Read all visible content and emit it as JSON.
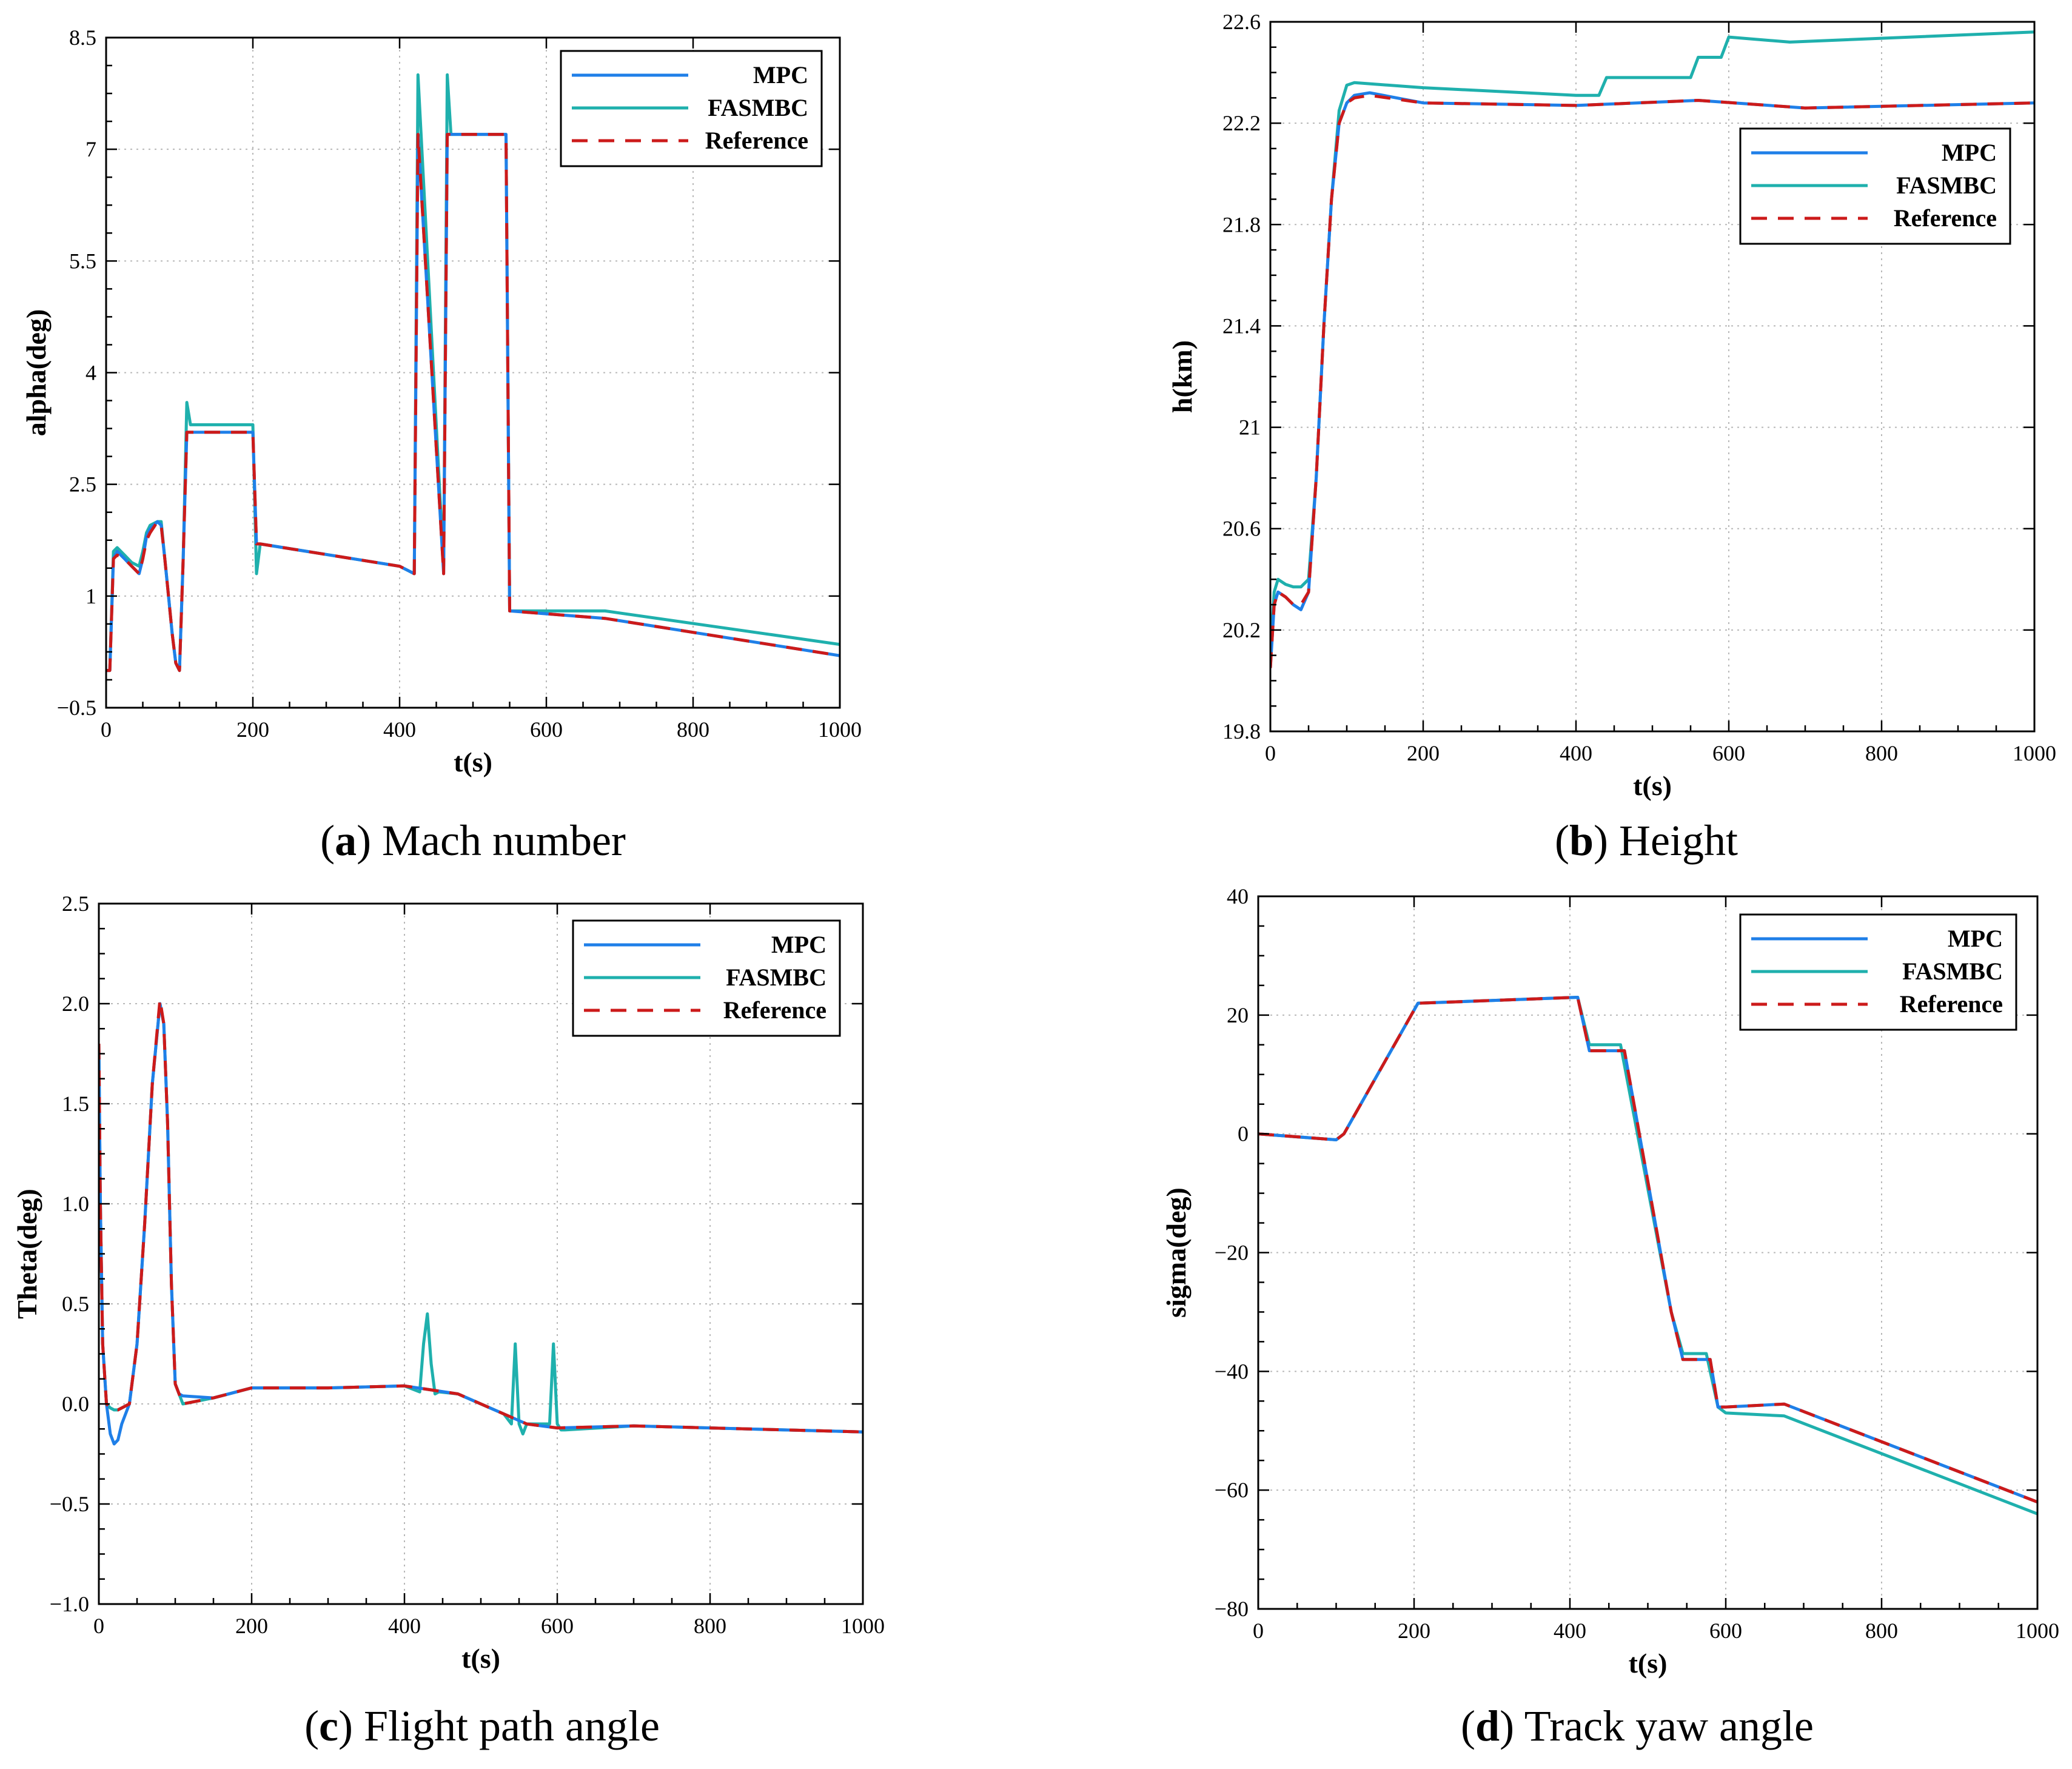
{
  "legend_labels": [
    "MPC",
    "FASMBC",
    "Reference"
  ],
  "colors": {
    "MPC": "#1f7fe8",
    "FASMBC": "#1fb0ad",
    "Reference": "#cc1a1a"
  },
  "chart_data": [
    {
      "id": "a",
      "type": "line",
      "caption_letter": "a",
      "caption_text": ") Mach number",
      "xlabel": "t(s)",
      "ylabel": "alpha(deg)",
      "xlim": [
        0,
        1000
      ],
      "ylim": [
        -0.5,
        8.5
      ],
      "xticks": [
        0,
        200,
        400,
        600,
        800,
        1000
      ],
      "xtick_labels": [
        "0",
        "200",
        "400",
        "600",
        "800",
        "1000"
      ],
      "yticks": [
        -0.5,
        1,
        2.5,
        4,
        5.5,
        7,
        8.5
      ],
      "ytick_labels": [
        "−0.5",
        "1",
        "2.5",
        "4",
        "5.5",
        "7",
        "8.5"
      ],
      "grid": true,
      "legend_position": "top-right",
      "series": [
        {
          "name": "MPC",
          "x": [
            0,
            5,
            10,
            15,
            25,
            35,
            45,
            50,
            55,
            60,
            70,
            75,
            80,
            85,
            90,
            95,
            100,
            105,
            110,
            115,
            150,
            200,
            205,
            210,
            400,
            420,
            425,
            460,
            465,
            470,
            545,
            550,
            680,
            1000
          ],
          "y": [
            0,
            0,
            1.5,
            1.6,
            1.5,
            1.4,
            1.3,
            1.5,
            1.8,
            1.9,
            2.0,
            1.95,
            1.5,
            1.0,
            0.5,
            0.1,
            0,
            1.5,
            3.2,
            3.2,
            3.2,
            3.2,
            1.7,
            1.7,
            1.4,
            1.3,
            7.2,
            1.3,
            7.2,
            7.2,
            7.2,
            0.8,
            0.7,
            0.2
          ]
        },
        {
          "name": "FASMBC",
          "x": [
            0,
            5,
            10,
            15,
            25,
            35,
            45,
            50,
            55,
            60,
            70,
            75,
            80,
            85,
            90,
            95,
            100,
            105,
            110,
            115,
            150,
            200,
            205,
            210,
            400,
            420,
            425,
            460,
            465,
            470,
            545,
            550,
            680,
            1000
          ],
          "y": [
            0,
            0,
            1.6,
            1.65,
            1.55,
            1.45,
            1.4,
            1.6,
            1.85,
            1.95,
            2.0,
            2.0,
            1.5,
            1.0,
            0.5,
            0.1,
            0,
            1.5,
            3.6,
            3.3,
            3.3,
            3.3,
            1.3,
            1.7,
            1.4,
            1.3,
            8.0,
            1.4,
            8.0,
            7.2,
            7.2,
            0.8,
            0.8,
            0.35
          ]
        },
        {
          "name": "Reference",
          "x": [
            0,
            5,
            10,
            15,
            25,
            35,
            45,
            50,
            55,
            60,
            70,
            75,
            80,
            85,
            90,
            95,
            100,
            105,
            110,
            115,
            150,
            200,
            205,
            210,
            400,
            420,
            425,
            460,
            465,
            470,
            545,
            550,
            680,
            1000
          ],
          "y": [
            0,
            0,
            1.5,
            1.55,
            1.5,
            1.4,
            1.3,
            1.5,
            1.75,
            1.85,
            2.0,
            1.95,
            1.5,
            1.0,
            0.5,
            0.1,
            0,
            1.5,
            3.2,
            3.2,
            3.2,
            3.2,
            1.7,
            1.7,
            1.4,
            1.3,
            7.2,
            1.3,
            7.2,
            7.2,
            7.2,
            0.8,
            0.7,
            0.2
          ]
        }
      ]
    },
    {
      "id": "b",
      "type": "line",
      "caption_letter": "b",
      "caption_text": ") Height",
      "xlabel": "t(s)",
      "ylabel": "h(km)",
      "xlim": [
        0,
        1000
      ],
      "ylim": [
        19.8,
        22.6
      ],
      "xticks": [
        0,
        200,
        400,
        600,
        800,
        1000
      ],
      "xtick_labels": [
        "0",
        "200",
        "400",
        "600",
        "800",
        "1000"
      ],
      "yticks": [
        19.8,
        20.2,
        20.6,
        21,
        21.4,
        21.8,
        22.2,
        22.6
      ],
      "ytick_labels": [
        "19.8",
        "20.2",
        "20.6",
        "21",
        "21.4",
        "21.8",
        "22.2",
        "22.6"
      ],
      "grid": true,
      "legend_position": "top-right",
      "series": [
        {
          "name": "MPC",
          "x": [
            0,
            5,
            10,
            20,
            30,
            40,
            50,
            60,
            70,
            80,
            90,
            100,
            110,
            130,
            200,
            400,
            560,
            700,
            1000
          ],
          "y": [
            20.05,
            20.3,
            20.35,
            20.33,
            20.3,
            20.28,
            20.35,
            20.8,
            21.4,
            21.9,
            22.2,
            22.28,
            22.31,
            22.32,
            22.28,
            22.27,
            22.29,
            22.26,
            22.28
          ]
        },
        {
          "name": "FASMBC",
          "x": [
            0,
            5,
            10,
            20,
            30,
            40,
            50,
            60,
            70,
            80,
            90,
            100,
            110,
            200,
            400,
            430,
            440,
            550,
            560,
            590,
            600,
            680,
            1000
          ],
          "y": [
            20.1,
            20.35,
            20.4,
            20.38,
            20.37,
            20.37,
            20.4,
            20.8,
            21.4,
            21.9,
            22.25,
            22.35,
            22.36,
            22.34,
            22.31,
            22.31,
            22.38,
            22.38,
            22.46,
            22.46,
            22.54,
            22.52,
            22.56
          ]
        },
        {
          "name": "Reference",
          "x": [
            0,
            5,
            10,
            20,
            30,
            40,
            50,
            60,
            70,
            80,
            90,
            100,
            110,
            130,
            200,
            400,
            560,
            700,
            1000
          ],
          "y": [
            20.05,
            20.3,
            20.35,
            20.33,
            20.3,
            20.3,
            20.35,
            20.8,
            21.4,
            21.9,
            22.2,
            22.28,
            22.3,
            22.31,
            22.28,
            22.27,
            22.29,
            22.26,
            22.28
          ]
        }
      ]
    },
    {
      "id": "c",
      "type": "line",
      "caption_letter": "c",
      "caption_text": ") Flight path angle",
      "xlabel": "t(s)",
      "ylabel": "Theta(deg)",
      "xlim": [
        0,
        1000
      ],
      "ylim": [
        -1.0,
        2.5
      ],
      "xticks": [
        0,
        200,
        400,
        600,
        800,
        1000
      ],
      "xtick_labels": [
        "0",
        "200",
        "400",
        "600",
        "800",
        "1000"
      ],
      "yticks": [
        -1.0,
        -0.5,
        0.0,
        0.5,
        1.0,
        1.5,
        2.0,
        2.5
      ],
      "ytick_labels": [
        "−1.0",
        "−0.5",
        "0.0",
        "0.5",
        "1.0",
        "1.5",
        "2.0",
        "2.5"
      ],
      "grid": true,
      "legend_position": "top-right",
      "series": [
        {
          "name": "MPC",
          "x": [
            0,
            2,
            5,
            10,
            15,
            20,
            25,
            30,
            40,
            50,
            60,
            70,
            80,
            85,
            90,
            95,
            100,
            105,
            110,
            150,
            200,
            300,
            400,
            470,
            530,
            560,
            600,
            700,
            800,
            1000
          ],
          "y": [
            1.8,
            1.0,
            0.3,
            0.0,
            -0.15,
            -0.2,
            -0.18,
            -0.1,
            0.0,
            0.3,
            0.9,
            1.6,
            2.0,
            1.9,
            1.4,
            0.6,
            0.1,
            0.05,
            0.04,
            0.03,
            0.08,
            0.08,
            0.09,
            0.05,
            -0.05,
            -0.1,
            -0.12,
            -0.11,
            -0.12,
            -0.14
          ]
        },
        {
          "name": "FASMBC",
          "x": [
            0,
            2,
            5,
            10,
            15,
            20,
            25,
            30,
            40,
            50,
            60,
            70,
            80,
            85,
            90,
            95,
            100,
            105,
            110,
            150,
            200,
            300,
            400,
            420,
            425,
            430,
            435,
            440,
            445,
            470,
            530,
            540,
            545,
            550,
            555,
            560,
            590,
            595,
            600,
            605,
            610,
            700,
            800,
            1000
          ],
          "y": [
            1.8,
            1.0,
            0.3,
            0.0,
            -0.02,
            -0.03,
            -0.03,
            -0.02,
            0.0,
            0.3,
            0.9,
            1.6,
            2.0,
            1.9,
            1.4,
            0.6,
            0.1,
            0.05,
            0.0,
            0.03,
            0.08,
            0.08,
            0.09,
            0.06,
            0.3,
            0.45,
            0.2,
            0.05,
            0.06,
            0.05,
            -0.05,
            -0.1,
            0.3,
            -0.1,
            -0.15,
            -0.1,
            -0.1,
            0.3,
            -0.1,
            -0.13,
            -0.13,
            -0.11,
            -0.12,
            -0.14
          ]
        },
        {
          "name": "Reference",
          "x": [
            0,
            2,
            5,
            10,
            15,
            20,
            25,
            30,
            40,
            50,
            60,
            70,
            80,
            85,
            90,
            95,
            100,
            105,
            110,
            150,
            200,
            300,
            400,
            470,
            530,
            560,
            600,
            700,
            800,
            1000
          ],
          "y": [
            1.8,
            1.0,
            0.3,
            0.0,
            -0.02,
            -0.03,
            -0.03,
            -0.02,
            0.0,
            0.3,
            0.9,
            1.6,
            2.02,
            1.9,
            1.4,
            0.6,
            0.1,
            0.05,
            0.0,
            0.03,
            0.08,
            0.08,
            0.09,
            0.05,
            -0.05,
            -0.1,
            -0.12,
            -0.11,
            -0.12,
            -0.14
          ]
        }
      ]
    },
    {
      "id": "d",
      "type": "line",
      "caption_letter": "d",
      "caption_text": ") Track yaw angle",
      "xlabel": "t(s)",
      "ylabel": "sigma(deg)",
      "xlim": [
        0,
        1000
      ],
      "ylim": [
        -80,
        40
      ],
      "xticks": [
        0,
        200,
        400,
        600,
        800,
        1000
      ],
      "xtick_labels": [
        "0",
        "200",
        "400",
        "600",
        "800",
        "1000"
      ],
      "yticks": [
        -80,
        -60,
        -40,
        -20,
        0,
        20,
        40
      ],
      "ytick_labels": [
        "−80",
        "−60",
        "−40",
        "−20",
        "0",
        "20",
        "40"
      ],
      "grid": true,
      "legend_position": "top-right",
      "series": [
        {
          "name": "MPC",
          "x": [
            0,
            100,
            110,
            205,
            410,
            425,
            470,
            530,
            545,
            570,
            580,
            590,
            600,
            675,
            1000
          ],
          "y": [
            0,
            -1,
            0,
            22,
            23,
            14,
            14,
            -30,
            -38,
            -38,
            -38,
            -46,
            -46,
            -45.5,
            -62
          ]
        },
        {
          "name": "FASMBC",
          "x": [
            0,
            100,
            110,
            205,
            410,
            425,
            465,
            530,
            545,
            575,
            590,
            600,
            675,
            1000
          ],
          "y": [
            0,
            -1,
            0,
            22,
            23,
            15,
            15,
            -30,
            -37,
            -37,
            -46,
            -47,
            -47.5,
            -64
          ]
        },
        {
          "name": "Reference",
          "x": [
            0,
            100,
            110,
            205,
            410,
            425,
            470,
            530,
            545,
            570,
            580,
            590,
            600,
            675,
            1000
          ],
          "y": [
            0,
            -1,
            0,
            22,
            23,
            14,
            14,
            -30,
            -38,
            -38,
            -38,
            -46,
            -46,
            -45.5,
            -62
          ]
        }
      ]
    }
  ]
}
